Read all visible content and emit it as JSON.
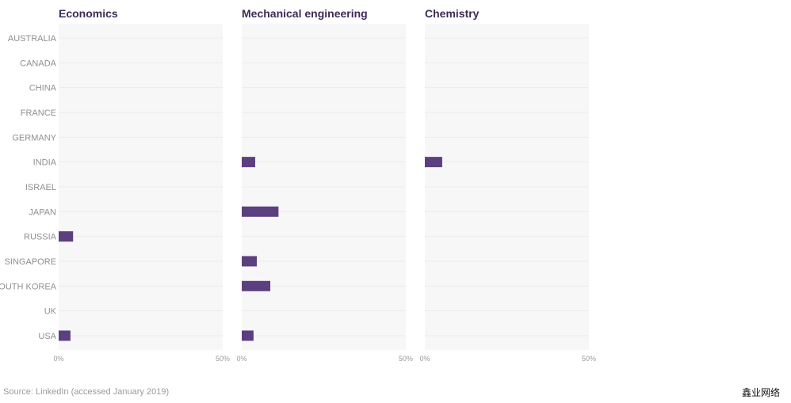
{
  "chart_data": {
    "type": "bar",
    "orientation": "horizontal",
    "categories": [
      "AUSTRALIA",
      "CANADA",
      "CHINA",
      "FRANCE",
      "GERMANY",
      "INDIA",
      "ISRAEL",
      "JAPAN",
      "RUSSIA",
      "SINGAPORE",
      "SOUTH KOREA",
      "UK",
      "USA"
    ],
    "xlim": [
      0,
      50
    ],
    "ticks": [
      "0%",
      "50%"
    ],
    "panels": [
      {
        "title": "Economics",
        "values": [
          0,
          0,
          0,
          0,
          0,
          0,
          0,
          0,
          4.4,
          0,
          0,
          0,
          3.6
        ]
      },
      {
        "title": "Mechanical engineering",
        "values": [
          0,
          0,
          0,
          0,
          0,
          4.1,
          0,
          11.2,
          0,
          4.6,
          8.7,
          0,
          3.6
        ]
      },
      {
        "title": "Chemistry",
        "values": [
          0,
          0,
          0,
          0,
          0,
          5.3,
          0,
          0,
          0,
          0,
          0,
          0,
          0
        ]
      }
    ],
    "bar_color": "#5b3f7f",
    "panel_bg": "#f7f7f7",
    "grid_color": "#ebebeb"
  },
  "source": "Source: LinkedIn (accessed January 2019)",
  "watermark": "鑫业网络"
}
